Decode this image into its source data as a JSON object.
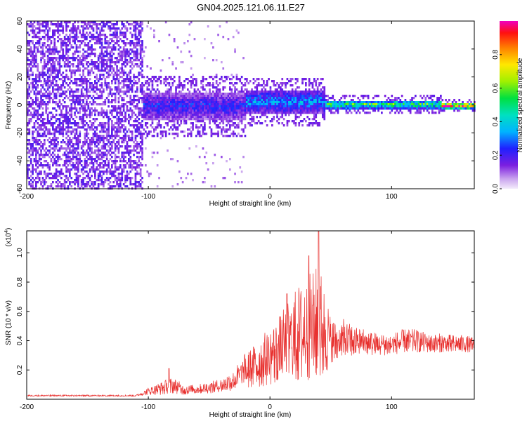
{
  "title": "GN04.2025.121.06.11.E27",
  "chart_data": [
    {
      "type": "heatmap",
      "xlabel": "Height of straight line (km)",
      "ylabel": "Frequency (Hz)",
      "xlim": [
        -200,
        168
      ],
      "ylim": [
        -60,
        60
      ],
      "xticks": [
        -200,
        -100,
        0,
        100
      ],
      "yticks": [
        -60,
        -40,
        -20,
        0,
        20,
        40,
        60
      ],
      "colorbar": {
        "label": "Normalized spectral amplitude",
        "range": [
          0,
          1
        ],
        "ticks": [
          0.0,
          0.2,
          0.4,
          0.6,
          0.8
        ],
        "tick_labels": [
          "0.0",
          "0.2",
          "0.4",
          "0.6",
          "0.8"
        ]
      },
      "regions": [
        {
          "x_range": [
            -200,
            -105
          ],
          "description": "scattered low amplitude noise across all frequencies",
          "amplitude": 0.08
        },
        {
          "x_range": [
            -105,
            -20
          ],
          "freq_center": 0,
          "freq_halfwidth": 10,
          "amplitude": 0.25
        },
        {
          "x_range": [
            -20,
            45
          ],
          "freq_center": 3,
          "freq_halfwidth": 8,
          "amplitude": 0.35
        },
        {
          "x_range": [
            45,
            140
          ],
          "freq_center": 1,
          "freq_halfwidth": 3,
          "amplitude": 0.6
        },
        {
          "x_range": [
            140,
            168
          ],
          "freq_center": 0,
          "freq_halfwidth": 2,
          "amplitude": 0.95
        }
      ]
    },
    {
      "type": "line",
      "xlabel": "Height of straight line (km)",
      "ylabel": "SNR (10 * v/v)",
      "y_multiplier": "(x10",
      "y_multiplier_exp": "4",
      "y_multiplier_close": ")",
      "xlim": [
        -200,
        168
      ],
      "ylim": [
        0,
        1.15
      ],
      "xticks": [
        -200,
        -100,
        0,
        100
      ],
      "yticks": [
        0.2,
        0.4,
        0.6,
        0.8,
        1.0
      ],
      "series": [
        {
          "color": "#e8312f",
          "envelope_x": [
            -200,
            -110,
            -100,
            -90,
            -80,
            -70,
            -60,
            -50,
            -40,
            -30,
            -20,
            -10,
            0,
            10,
            20,
            30,
            40,
            45,
            50,
            60,
            70,
            80,
            90,
            100,
            110,
            120,
            130,
            140,
            150,
            160,
            168
          ],
          "envelope_y": [
            0.03,
            0.03,
            0.08,
            0.12,
            0.15,
            0.1,
            0.1,
            0.12,
            0.14,
            0.2,
            0.32,
            0.4,
            0.5,
            0.6,
            0.75,
            0.85,
            0.92,
            0.8,
            0.55,
            0.55,
            0.5,
            0.48,
            0.45,
            0.45,
            0.48,
            0.48,
            0.45,
            0.45,
            0.44,
            0.44,
            0.42
          ],
          "floor_y": [
            0.02,
            0.02,
            0.03,
            0.03,
            0.04,
            0.03,
            0.04,
            0.04,
            0.05,
            0.06,
            0.07,
            0.08,
            0.1,
            0.12,
            0.12,
            0.13,
            0.12,
            0.15,
            0.25,
            0.28,
            0.3,
            0.3,
            0.3,
            0.3,
            0.32,
            0.32,
            0.32,
            0.32,
            0.32,
            0.32,
            0.32
          ],
          "peaks": [
            [
              40,
              1.16
            ],
            [
              32,
              0.98
            ],
            [
              14,
              0.72
            ],
            [
              -83,
              0.21
            ]
          ]
        }
      ]
    }
  ]
}
